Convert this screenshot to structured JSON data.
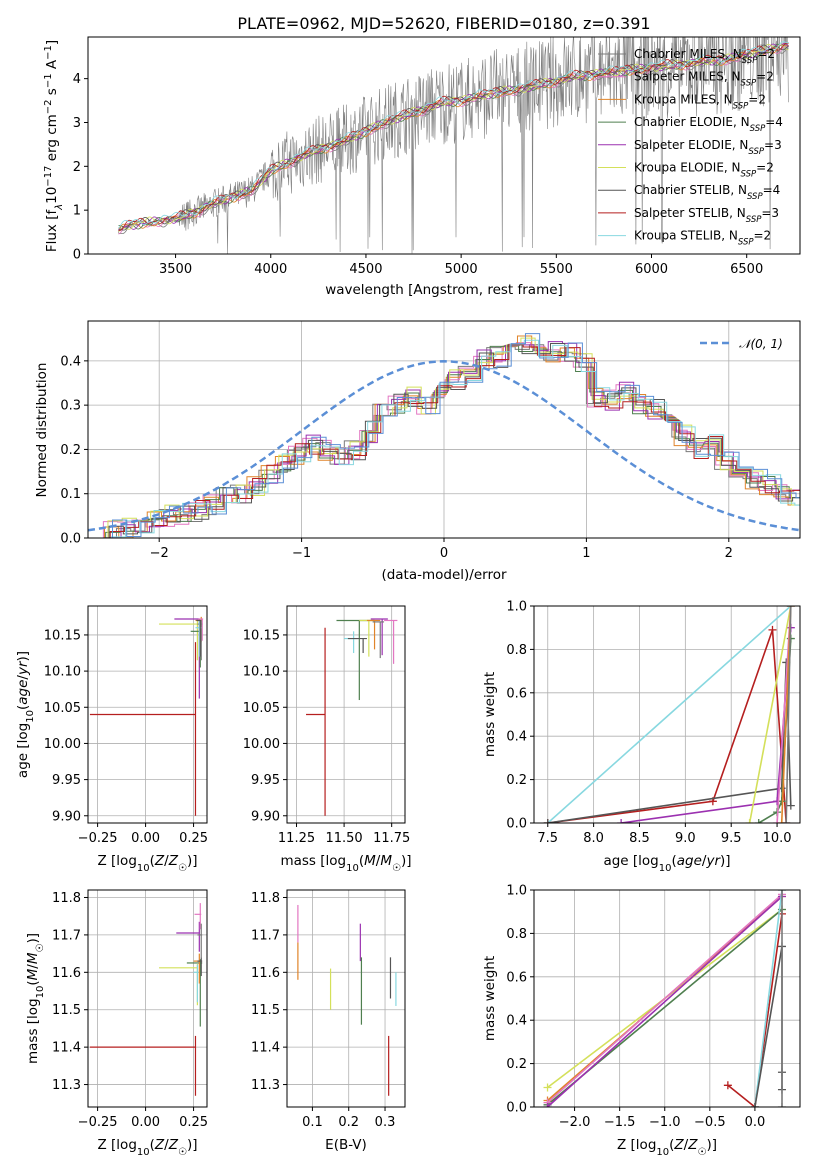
{
  "title": "PLATE=0962, MJD=52620, FIBERID=0180, z=0.391",
  "colors": {
    "chabrier_miles": "#7a7a7a",
    "salpeter_miles": "#e377c2",
    "kroupa_miles": "#e0842a",
    "chabrier_elodie": "#4f7f4f",
    "salpeter_elodie": "#9b30b0",
    "kroupa_elodie": "#d4e05a",
    "chabrier_stelib": "#555555",
    "salpeter_stelib": "#b51f1f",
    "kroupa_stelib": "#88d8e0",
    "data": "#808080",
    "gaussian": "#5b8fd6"
  },
  "chart_data": [
    {
      "id": "spectrum",
      "type": "line",
      "title": "PLATE=0962, MJD=52620, FIBERID=0180, z=0.391",
      "xlabel": "wavelength [Angstrom, rest frame]",
      "ylabel": "Flux [fλ10⁻¹⁷ erg cm⁻² s⁻¹ A⁻¹]",
      "xlim": [
        3040,
        6780
      ],
      "ylim": [
        0,
        4.95
      ],
      "xticks": [
        3500,
        4000,
        4500,
        5000,
        5500,
        6000,
        6500
      ],
      "yticks": [
        0,
        1,
        2,
        3,
        4
      ],
      "grid": false,
      "legend_position": "top-right",
      "legend": [
        {
          "label": "Chabrier MILES, NSSP=2",
          "key": "chabrier_miles"
        },
        {
          "label": "Salpeter MILES, NSSP=2",
          "key": "salpeter_miles"
        },
        {
          "label": "Kroupa MILES, NSSP=2",
          "key": "kroupa_miles"
        },
        {
          "label": "Chabrier ELODIE, NSSP=4",
          "key": "chabrier_elodie"
        },
        {
          "label": "Salpeter ELODIE, NSSP=3",
          "key": "salpeter_elodie"
        },
        {
          "label": "Kroupa ELODIE, NSSP=2",
          "key": "kroupa_elodie"
        },
        {
          "label": "Chabrier STELIB, NSSP=4",
          "key": "chabrier_stelib"
        },
        {
          "label": "Salpeter STELIB, NSSP=3",
          "key": "salpeter_stelib"
        },
        {
          "label": "Kroupa STELIB, NSSP=2",
          "key": "kroupa_stelib"
        }
      ],
      "continuum": {
        "x": [
          3200,
          3250,
          3400,
          3500,
          3600,
          3700,
          3800,
          3900,
          4000,
          4100,
          4200,
          4300,
          4400,
          4500,
          4600,
          4700,
          4800,
          4900,
          5000,
          5100,
          5200,
          5300,
          5400,
          5500,
          5600,
          5700,
          5800,
          5900,
          6000,
          6100,
          6200,
          6300,
          6400,
          6500,
          6600,
          6700
        ],
        "y": [
          0.55,
          0.65,
          0.75,
          0.8,
          0.95,
          1.15,
          1.3,
          1.45,
          1.9,
          2.1,
          2.3,
          2.45,
          2.6,
          2.8,
          3.0,
          3.15,
          3.3,
          3.45,
          3.5,
          3.6,
          3.7,
          3.75,
          3.85,
          3.95,
          4.05,
          4.1,
          4.15,
          4.2,
          4.25,
          4.3,
          4.35,
          4.4,
          4.45,
          4.55,
          4.65,
          4.75
        ]
      },
      "noisy_from_x": 3520
    },
    {
      "id": "residuals",
      "type": "bar",
      "xlabel": "(data-model)/error",
      "ylabel": "Normed distribution",
      "xlim": [
        -2.5,
        2.5
      ],
      "ylim": [
        0,
        0.49
      ],
      "xticks": [
        -2,
        -1,
        0,
        1,
        2
      ],
      "yticks": [
        0,
        0.1,
        0.2,
        0.3,
        0.4
      ],
      "grid": true,
      "legend_position": "top-right",
      "gaussian_label": "𝒩(0, 1)",
      "bin_width": 0.1,
      "bin_start": -2.5,
      "density": [
        0.015,
        0.02,
        0.025,
        0.03,
        0.04,
        0.05,
        0.055,
        0.06,
        0.075,
        0.09,
        0.1,
        0.12,
        0.14,
        0.17,
        0.19,
        0.21,
        0.2,
        0.18,
        0.2,
        0.24,
        0.28,
        0.3,
        0.32,
        0.3,
        0.33,
        0.36,
        0.37,
        0.4,
        0.41,
        0.42,
        0.44,
        0.43,
        0.42,
        0.42,
        0.4,
        0.32,
        0.31,
        0.33,
        0.3,
        0.29,
        0.27,
        0.23,
        0.2,
        0.21,
        0.17,
        0.15,
        0.13,
        0.12,
        0.1,
        0.09,
        0.085,
        0.07,
        0.06,
        0.05,
        0.05,
        0.045,
        0.04,
        0.035,
        0.03,
        0.03
      ]
    },
    {
      "id": "age_vs_z",
      "type": "scatter",
      "xlabel": "Z [log10(Z/Z☉)]",
      "ylabel": "age  [log10(age/yr)]",
      "xlim": [
        -0.3,
        0.32
      ],
      "ylim": [
        9.89,
        10.19
      ],
      "xticks": [
        -0.25,
        0.0,
        0.25
      ],
      "yticks": [
        9.9,
        9.95,
        10.0,
        10.05,
        10.1,
        10.15
      ],
      "grid": true,
      "points": [
        {
          "key": "salpeter_stelib",
          "x": 0.26,
          "y": 10.04,
          "xerr": [
            0.55,
            0.0
          ],
          "yerr": [
            0.14,
            0.1
          ]
        },
        {
          "key": "salpeter_elodie",
          "x": 0.28,
          "y": 10.172,
          "xerr": [
            0.13,
            0.0
          ],
          "yerr": [
            0.11,
            0.0
          ]
        },
        {
          "key": "kroupa_elodie",
          "x": 0.27,
          "y": 10.165,
          "xerr": [
            0.2,
            0.0
          ],
          "yerr": [
            0.05,
            0.005
          ]
        },
        {
          "key": "chabrier_elodie",
          "x": 0.285,
          "y": 10.155,
          "xerr": [
            0.05,
            0.005
          ],
          "yerr": [
            0.05,
            0.01
          ]
        },
        {
          "key": "kroupa_miles",
          "x": 0.29,
          "y": 10.17,
          "xerr": [
            0.03,
            0.005
          ],
          "yerr": [
            0.03,
            0.005
          ]
        },
        {
          "key": "salpeter_miles",
          "x": 0.295,
          "y": 10.172,
          "xerr": [
            0.02,
            0.005
          ],
          "yerr": [
            0.03,
            0.0
          ]
        },
        {
          "key": "chabrier_miles",
          "x": 0.29,
          "y": 10.165,
          "xerr": [
            0.02,
            0.005
          ],
          "yerr": [
            0.05,
            0.005
          ]
        },
        {
          "key": "kroupa_stelib",
          "x": 0.28,
          "y": 10.16,
          "xerr": [
            0.02,
            0.01
          ],
          "yerr": [
            0.04,
            0.01
          ]
        },
        {
          "key": "chabrier_stelib",
          "x": 0.285,
          "y": 10.17,
          "xerr": [
            0.02,
            0.005
          ],
          "yerr": [
            0.05,
            0.0
          ]
        }
      ]
    },
    {
      "id": "age_vs_mass",
      "type": "scatter",
      "xlabel": "mass [log10(M/M☉)]",
      "ylabel": "",
      "xlim": [
        11.2,
        11.82
      ],
      "ylim": [
        9.89,
        10.19
      ],
      "xticks": [
        11.25,
        11.5,
        11.75
      ],
      "yticks": [
        9.9,
        9.95,
        10.0,
        10.05,
        10.1,
        10.15
      ],
      "grid": true,
      "points": [
        {
          "key": "salpeter_stelib",
          "x": 11.4,
          "y": 10.04,
          "xerr": [
            0.1,
            0.0
          ],
          "yerr": [
            0.14,
            0.12
          ]
        },
        {
          "key": "chabrier_elodie",
          "x": 11.58,
          "y": 10.17,
          "xerr": [
            0.12,
            0.08
          ],
          "yerr": [
            0.11,
            0.0
          ]
        },
        {
          "key": "kroupa_stelib",
          "x": 11.55,
          "y": 10.145,
          "xerr": [
            0.05,
            0.02
          ],
          "yerr": [
            0.02,
            0.01
          ]
        },
        {
          "key": "chabrier_stelib",
          "x": 11.6,
          "y": 10.145,
          "xerr": [
            0.08,
            0.02
          ],
          "yerr": [
            0.02,
            0.0
          ]
        },
        {
          "key": "kroupa_elodie",
          "x": 11.63,
          "y": 10.17,
          "xerr": [
            0.05,
            0.03
          ],
          "yerr": [
            0.05,
            0.0
          ]
        },
        {
          "key": "kroupa_miles",
          "x": 11.66,
          "y": 10.17,
          "xerr": [
            0.04,
            0.03
          ],
          "yerr": [
            0.04,
            0.0
          ]
        },
        {
          "key": "salpeter_elodie",
          "x": 11.7,
          "y": 10.172,
          "xerr": [
            0.06,
            0.03
          ],
          "yerr": [
            0.05,
            0.0
          ]
        },
        {
          "key": "salpeter_miles",
          "x": 11.76,
          "y": 10.17,
          "xerr": [
            0.05,
            0.02
          ],
          "yerr": [
            0.06,
            0.0
          ]
        },
        {
          "key": "chabrier_miles",
          "x": 11.69,
          "y": 10.168,
          "xerr": [
            0.04,
            0.02
          ],
          "yerr": [
            0.05,
            0.0
          ]
        }
      ]
    },
    {
      "id": "massweight_vs_age",
      "type": "line",
      "xlabel": "age  [log10(age/yr)]",
      "ylabel": "mass weight",
      "xlim": [
        7.35,
        10.25
      ],
      "ylim": [
        0,
        1.0
      ],
      "xticks": [
        7.5,
        8.0,
        8.5,
        9.0,
        9.5,
        10.0
      ],
      "yticks": [
        0,
        0.2,
        0.4,
        0.6,
        0.8,
        1.0
      ],
      "grid": true,
      "series": [
        {
          "key": "kroupa_stelib",
          "x": [
            7.5,
            10.15
          ],
          "y": [
            0.0,
            1.0
          ]
        },
        {
          "key": "salpeter_stelib",
          "x": [
            7.5,
            9.3,
            9.95,
            10.1
          ],
          "y": [
            0.0,
            0.1,
            0.89,
            0.0
          ]
        },
        {
          "key": "chabrier_stelib",
          "x": [
            7.5,
            10.05,
            10.1,
            10.15
          ],
          "y": [
            0.0,
            0.16,
            0.74,
            0.08
          ]
        },
        {
          "key": "salpeter_elodie",
          "x": [
            8.3,
            10.0,
            10.15
          ],
          "y": [
            0.0,
            0.1,
            0.9
          ]
        },
        {
          "key": "chabrier_elodie",
          "x": [
            9.8,
            10.0,
            10.05,
            10.15
          ],
          "y": [
            0.0,
            0.05,
            0.1,
            0.85
          ]
        },
        {
          "key": "kroupa_elodie",
          "x": [
            9.7,
            10.15
          ],
          "y": [
            0.0,
            1.0
          ]
        },
        {
          "key": "salpeter_miles",
          "x": [
            10.0,
            10.15
          ],
          "y": [
            0.0,
            1.0
          ]
        },
        {
          "key": "kroupa_miles",
          "x": [
            10.05,
            10.15
          ],
          "y": [
            0.0,
            1.0
          ]
        },
        {
          "key": "chabrier_miles",
          "x": [
            10.1,
            10.15
          ],
          "y": [
            0.0,
            1.0
          ]
        }
      ]
    },
    {
      "id": "mass_vs_z",
      "type": "scatter",
      "xlabel": "Z [log10(Z/Z☉)]",
      "ylabel": "mass [log10(M/M☉)]",
      "xlim": [
        -0.3,
        0.32
      ],
      "ylim": [
        11.24,
        11.82
      ],
      "xticks": [
        -0.25,
        0.0,
        0.25
      ],
      "yticks": [
        11.3,
        11.4,
        11.5,
        11.6,
        11.7,
        11.8
      ],
      "grid": true,
      "points": [
        {
          "key": "salpeter_stelib",
          "x": 0.26,
          "y": 11.4,
          "xerr": [
            0.55,
            0.0
          ],
          "yerr": [
            0.13,
            0.03
          ]
        },
        {
          "key": "salpeter_elodie",
          "x": 0.28,
          "y": 11.705,
          "xerr": [
            0.12,
            0.0
          ],
          "yerr": [
            0.05,
            0.03
          ]
        },
        {
          "key": "kroupa_elodie",
          "x": 0.27,
          "y": 11.612,
          "xerr": [
            0.2,
            0.0
          ],
          "yerr": [
            0.1,
            0.01
          ]
        },
        {
          "key": "chabrier_elodie",
          "x": 0.285,
          "y": 11.625,
          "xerr": [
            0.07,
            0.01
          ],
          "yerr": [
            0.17,
            0.01
          ]
        },
        {
          "key": "kroupa_miles",
          "x": 0.28,
          "y": 11.63,
          "xerr": [
            0.03,
            0.005
          ],
          "yerr": [
            0.06,
            0.02
          ]
        },
        {
          "key": "salpeter_miles",
          "x": 0.285,
          "y": 11.755,
          "xerr": [
            0.03,
            0.005
          ],
          "yerr": [
            0.04,
            0.03
          ]
        },
        {
          "key": "chabrier_miles",
          "x": 0.29,
          "y": 11.7,
          "xerr": [
            0.02,
            0.005
          ],
          "yerr": [
            0.06,
            0.03
          ]
        },
        {
          "key": "kroupa_stelib",
          "x": 0.27,
          "y": 11.6,
          "xerr": [
            0.02,
            0.005
          ],
          "yerr": [
            0.08,
            0.02
          ]
        },
        {
          "key": "chabrier_stelib",
          "x": 0.29,
          "y": 11.63,
          "xerr": [
            0.02,
            0.005
          ],
          "yerr": [
            0.04,
            0.01
          ]
        }
      ]
    },
    {
      "id": "mass_vs_ebv",
      "type": "scatter",
      "xlabel": "E(B-V)",
      "ylabel": "",
      "xlim": [
        0.03,
        0.355
      ],
      "ylim": [
        11.24,
        11.82
      ],
      "xticks": [
        0.1,
        0.2,
        0.3
      ],
      "yticks": [
        11.3,
        11.4,
        11.5,
        11.6,
        11.7,
        11.8
      ],
      "grid": true,
      "points": [
        {
          "key": "kroupa_miles",
          "x": 0.06,
          "y": 11.63,
          "xerr": [
            0,
            0
          ],
          "yerr": [
            0.05,
            0.05
          ]
        },
        {
          "key": "salpeter_miles",
          "x": 0.06,
          "y": 11.73,
          "xerr": [
            0,
            0
          ],
          "yerr": [
            0.05,
            0.05
          ]
        },
        {
          "key": "kroupa_elodie",
          "x": 0.15,
          "y": 11.55,
          "xerr": [
            0,
            0
          ],
          "yerr": [
            0.05,
            0.06
          ]
        },
        {
          "key": "salpeter_elodie",
          "x": 0.232,
          "y": 11.68,
          "xerr": [
            0,
            0
          ],
          "yerr": [
            0.05,
            0.05
          ]
        },
        {
          "key": "chabrier_elodie",
          "x": 0.235,
          "y": 11.55,
          "xerr": [
            0,
            0
          ],
          "yerr": [
            0.09,
            0.09
          ]
        },
        {
          "key": "salpeter_stelib",
          "x": 0.31,
          "y": 11.35,
          "xerr": [
            0,
            0
          ],
          "yerr": [
            0.08,
            0.08
          ]
        },
        {
          "key": "chabrier_stelib",
          "x": 0.315,
          "y": 11.585,
          "xerr": [
            0,
            0
          ],
          "yerr": [
            0.055,
            0.055
          ]
        },
        {
          "key": "kroupa_stelib",
          "x": 0.33,
          "y": 11.555,
          "xerr": [
            0,
            0
          ],
          "yerr": [
            0.045,
            0.045
          ]
        }
      ]
    },
    {
      "id": "massweight_vs_z",
      "type": "line",
      "xlabel": "Z [log10(Z/Z☉)]",
      "ylabel": "mass weight",
      "xlim": [
        -2.45,
        0.5
      ],
      "ylim": [
        0,
        1.0
      ],
      "xticks": [
        -2.0,
        -1.5,
        -1.0,
        -0.5,
        0.0
      ],
      "yticks": [
        0,
        0.2,
        0.4,
        0.6,
        0.8,
        1.0
      ],
      "grid": true,
      "series": [
        {
          "key": "kroupa_elodie",
          "x": [
            -2.3,
            0.3
          ],
          "y": [
            0.09,
            0.91
          ]
        },
        {
          "key": "chabrier_elodie",
          "x": [
            -2.3,
            0.3
          ],
          "y": [
            0.01,
            0.91
          ]
        },
        {
          "key": "kroupa_miles",
          "x": [
            -2.3,
            0.3
          ],
          "y": [
            0.03,
            0.97
          ]
        },
        {
          "key": "salpeter_miles",
          "x": [
            -2.3,
            0.3
          ],
          "y": [
            0.02,
            0.98
          ]
        },
        {
          "key": "salpeter_elodie",
          "x": [
            -2.3,
            0.3
          ],
          "y": [
            0.0,
            0.97
          ]
        },
        {
          "key": "salpeter_stelib",
          "x": [
            -0.3,
            0.0,
            0.3
          ],
          "y": [
            0.1,
            0.0,
            0.89
          ]
        },
        {
          "key": "kroupa_stelib",
          "x": [
            0.0,
            0.3
          ],
          "y": [
            0.0,
            1.0
          ]
        },
        {
          "key": "chabrier_stelib",
          "x": [
            0.0,
            0.3,
            0.3,
            0.3
          ],
          "y": [
            0.0,
            0.74,
            0.16,
            0.08
          ]
        },
        {
          "key": "chabrier_miles",
          "x": [
            0.3,
            0.3
          ],
          "y": [
            0.0,
            1.0
          ]
        }
      ]
    }
  ]
}
